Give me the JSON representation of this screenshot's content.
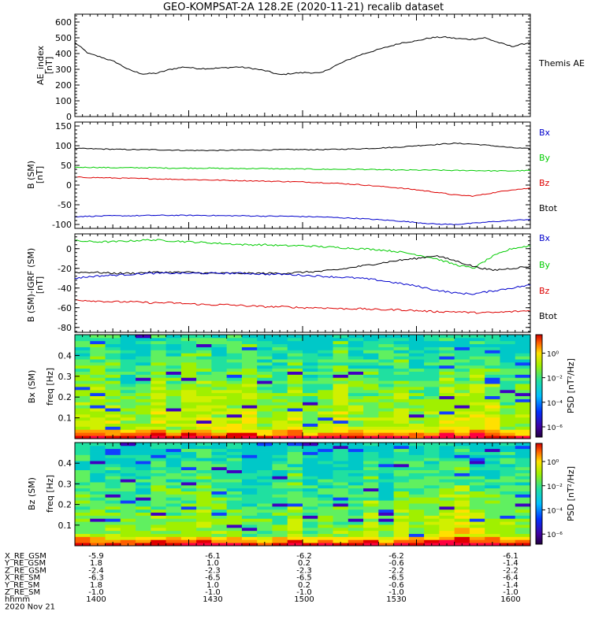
{
  "title": "GEO-KOMPSAT-2A 128.2E (2020-11-21) recalib dataset",
  "colors": {
    "bx": "#0000cc",
    "by": "#00cc00",
    "bz": "#dd0000",
    "btot": "#000000",
    "ae": "#000000"
  },
  "chart_data": [
    {
      "type": "line",
      "name": "ae_panel",
      "ylabel": "AE_index [nT]",
      "ylim": [
        0,
        650
      ],
      "yticks": [
        "0",
        "100",
        "200",
        "300",
        "400",
        "500",
        "600"
      ],
      "ytick_values": [
        0,
        100,
        200,
        300,
        400,
        500,
        600
      ],
      "legend": [
        "Themis AE"
      ],
      "series": [
        {
          "name": "Themis AE",
          "x": [
            0,
            0.03,
            0.06,
            0.09,
            0.12,
            0.15,
            0.18,
            0.21,
            0.24,
            0.27,
            0.3,
            0.33,
            0.36,
            0.39,
            0.42,
            0.45,
            0.48,
            0.51,
            0.54,
            0.57,
            0.6,
            0.63,
            0.66,
            0.69,
            0.72,
            0.75,
            0.78,
            0.81,
            0.84,
            0.87,
            0.9,
            0.93,
            0.96,
            1.0
          ],
          "values": [
            470,
            400,
            375,
            345,
            295,
            270,
            275,
            300,
            315,
            305,
            305,
            310,
            315,
            305,
            290,
            265,
            275,
            280,
            275,
            320,
            360,
            395,
            420,
            445,
            470,
            480,
            500,
            505,
            495,
            490,
            500,
            470,
            445,
            470
          ]
        }
      ]
    },
    {
      "type": "line",
      "name": "b_sm_panel",
      "ylabel": "B (SM) [nT]",
      "ylim": [
        -110,
        160
      ],
      "yticks": [
        "-100",
        "-50",
        "0",
        "50",
        "100",
        "150"
      ],
      "ytick_values": [
        -100,
        -50,
        0,
        50,
        100,
        150
      ],
      "legend": [
        "Bx",
        "By",
        "Bz",
        "Btot"
      ],
      "series": [
        {
          "name": "Btot",
          "values": [
            93,
            92,
            91,
            90,
            90,
            89,
            88,
            88,
            88,
            89,
            89,
            90,
            90,
            90,
            91,
            92,
            94,
            96,
            100,
            103,
            106,
            104,
            100,
            95,
            92
          ]
        },
        {
          "name": "By",
          "values": [
            45,
            45,
            44,
            44,
            44,
            43,
            43,
            43,
            42,
            42,
            42,
            41,
            41,
            40,
            40,
            40,
            39,
            38,
            38,
            38,
            37,
            37,
            36,
            36,
            37
          ]
        },
        {
          "name": "Bz",
          "values": [
            20,
            19,
            18,
            17,
            16,
            15,
            14,
            13,
            12,
            11,
            10,
            9,
            8,
            6,
            4,
            1,
            -3,
            -7,
            -12,
            -18,
            -25,
            -28,
            -20,
            -12,
            -8
          ]
        },
        {
          "name": "Bx",
          "values": [
            -80,
            -79,
            -78,
            -78,
            -77,
            -77,
            -77,
            -77,
            -78,
            -78,
            -79,
            -79,
            -80,
            -81,
            -83,
            -85,
            -88,
            -91,
            -95,
            -99,
            -100,
            -97,
            -93,
            -90,
            -87
          ]
        }
      ]
    },
    {
      "type": "line",
      "name": "b_igrf_panel",
      "ylabel": "B (SM)-IGRF (SM) [nT]",
      "ylim": [
        -85,
        15
      ],
      "yticks": [
        "-80",
        "-60",
        "-40",
        "-20",
        "0"
      ],
      "ytick_values": [
        -80,
        -60,
        -40,
        -20,
        0
      ],
      "legend": [
        "Bx",
        "By",
        "Bz",
        "Btot"
      ],
      "series": [
        {
          "name": "By",
          "values": [
            8,
            7,
            7,
            8,
            9,
            8,
            7,
            6,
            5,
            4,
            4,
            3,
            3,
            2,
            1,
            0,
            -1,
            -3,
            -6,
            -10,
            -16,
            -20,
            -8,
            0,
            3
          ]
        },
        {
          "name": "Btot",
          "values": [
            -24,
            -24,
            -25,
            -25,
            -24,
            -24,
            -24,
            -25,
            -25,
            -25,
            -25,
            -25,
            -24,
            -23,
            -21,
            -18,
            -15,
            -12,
            -10,
            -7,
            -12,
            -18,
            -22,
            -20,
            -18
          ]
        },
        {
          "name": "Bx",
          "values": [
            -30,
            -28,
            -27,
            -26,
            -25,
            -25,
            -25,
            -25,
            -25,
            -25,
            -26,
            -26,
            -27,
            -28,
            -29,
            -30,
            -32,
            -35,
            -38,
            -42,
            -45,
            -46,
            -43,
            -40,
            -37
          ]
        },
        {
          "name": "Bz",
          "values": [
            -52,
            -53,
            -54,
            -54,
            -55,
            -55,
            -56,
            -57,
            -57,
            -58,
            -59,
            -59,
            -60,
            -60,
            -61,
            -61,
            -62,
            -62,
            -63,
            -64,
            -64,
            -65,
            -65,
            -64,
            -63
          ]
        }
      ]
    },
    {
      "type": "heatmap",
      "name": "bx_spectrogram",
      "ylabel": "Bx (SM) freq [Hz]",
      "ylim": [
        0,
        0.5
      ],
      "yticks": [
        "0.1",
        "0.2",
        "0.3",
        "0.4"
      ],
      "ytick_values": [
        0.1,
        0.2,
        0.3,
        0.4
      ],
      "colorbar_label": "PSD [nT²/Hz]",
      "colorbar_ticks": [
        "10⁰",
        "10⁻²",
        "10⁻⁴",
        "10⁻⁶"
      ]
    },
    {
      "type": "heatmap",
      "name": "bz_spectrogram",
      "ylabel": "Bz (SM) freq [Hz]",
      "ylim": [
        0,
        0.5
      ],
      "yticks": [
        "0.1",
        "0.2",
        "0.3",
        "0.4"
      ],
      "ytick_values": [
        0.1,
        0.2,
        0.3,
        0.4
      ],
      "colorbar_label": "PSD [nT²/Hz]",
      "colorbar_ticks": [
        "10⁰",
        "10⁻²",
        "10⁻⁴",
        "10⁻⁶"
      ]
    }
  ],
  "ephemeris": {
    "labels": [
      "X_RE_GSM",
      "Y_RE_GSM",
      "Z_RE_GSM",
      "X_RE_SM",
      "Y_RE_SM",
      "Z_RE_SM",
      "hhmm"
    ],
    "rows": [
      [
        "-5.9",
        "-6.1",
        "-6.2",
        "-6.2",
        "-6.1"
      ],
      [
        "1.8",
        "1.0",
        "0.2",
        "-0.6",
        "-1.4"
      ],
      [
        "-2.4",
        "-2.3",
        "-2.3",
        "-2.2",
        "-2.2"
      ],
      [
        "-6.3",
        "-6.5",
        "-6.5",
        "-6.5",
        "-6.4"
      ],
      [
        "1.8",
        "1.0",
        "0.2",
        "-0.6",
        "-1.4"
      ],
      [
        "-1.0",
        "-1.0",
        "-1.0",
        "-1.0",
        "-1.0"
      ],
      [
        "1400",
        "1430",
        "1500",
        "1530",
        "1600"
      ]
    ],
    "date": "2020 Nov 21"
  }
}
